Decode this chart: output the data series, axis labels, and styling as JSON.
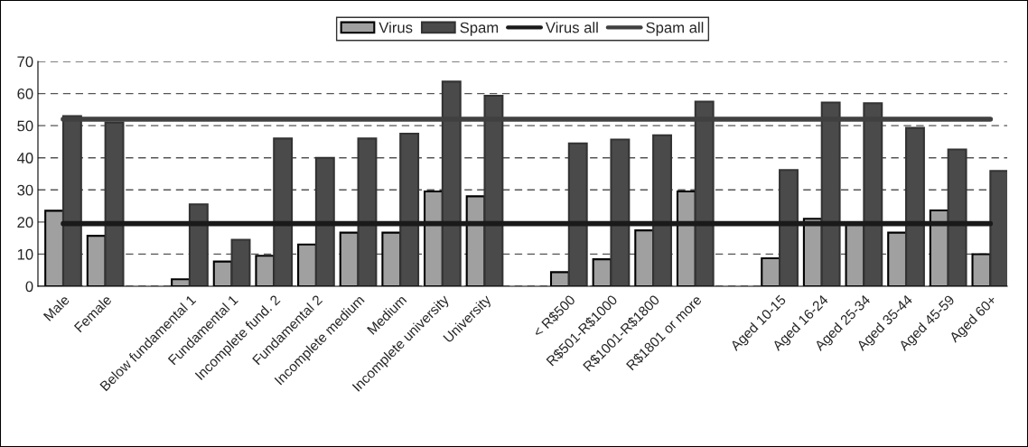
{
  "chart_data": {
    "type": "bar",
    "categories": [
      "Male",
      "Female",
      null,
      "Below fundamental 1",
      "Fundamental 1",
      "Incomplete fund. 2",
      "Fundamental 2",
      "Incomplete medium",
      "Medium",
      "Incomplete university",
      "University",
      null,
      "< R$500",
      "R$501-R$1000",
      "R$1001-R$1800",
      "R$1801 or more",
      null,
      "Aged 10-15",
      "Aged 16-24",
      "Aged 25-34",
      "Aged 35-44",
      "Aged 45-59",
      "Aged 60+"
    ],
    "series": [
      {
        "name": "Virus",
        "color": "#a0a0a0",
        "values": [
          23.5,
          15.7,
          null,
          2.2,
          7.7,
          9.5,
          13,
          16.7,
          16.7,
          29.5,
          28,
          null,
          4.4,
          8.4,
          17.4,
          29.5,
          null,
          8.7,
          21,
          19.5,
          16.7,
          23.6,
          10
        ]
      },
      {
        "name": "Spam",
        "color": "#4a4a4a",
        "values": [
          53,
          51,
          null,
          25.5,
          14.5,
          46,
          40,
          46,
          47.5,
          63.7,
          59.3,
          null,
          44.5,
          45.7,
          47,
          57.5,
          null,
          36.2,
          57.2,
          57,
          49.3,
          42.6,
          35.9
        ]
      },
      {
        "name": "Virus all",
        "type": "line",
        "color": "#1a1a1a",
        "values": [
          19.5,
          19.5,
          19.5,
          19.5,
          19.5,
          19.5,
          19.5,
          19.5,
          19.5,
          19.5,
          19.5,
          19.5,
          19.5,
          19.5,
          19.5,
          19.5,
          19.5,
          19.5,
          19.5,
          19.5,
          19.5,
          19.5,
          19.5
        ]
      },
      {
        "name": "Spam all",
        "type": "line",
        "color": "#404040",
        "values": [
          52,
          52,
          52,
          52,
          52,
          52,
          52,
          52,
          52,
          52,
          52,
          52,
          52,
          52,
          52,
          52,
          52,
          52,
          52,
          52,
          52,
          52,
          52
        ]
      }
    ],
    "ylim": [
      0,
      70
    ],
    "yticks": [
      0,
      10,
      20,
      30,
      40,
      50,
      60,
      70
    ],
    "grid": "y",
    "legend": "top",
    "line_style": "solid",
    "marker": "none"
  }
}
